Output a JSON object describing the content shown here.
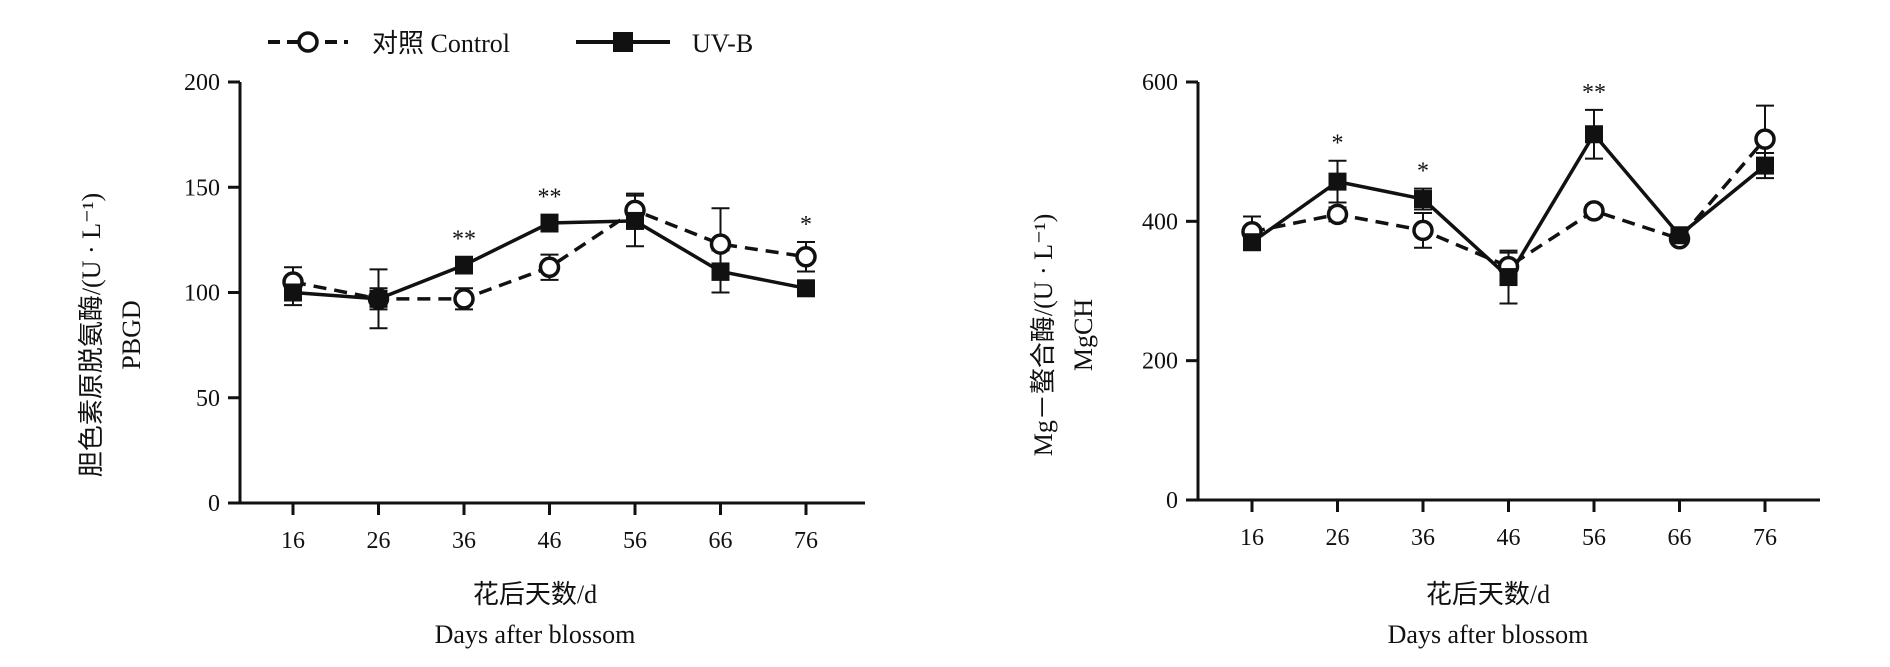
{
  "legend": [
    {
      "label": "对照 Control",
      "style": "dashed",
      "marker": "open-circle"
    },
    {
      "label": "UV-B",
      "style": "solid",
      "marker": "filled-square"
    }
  ],
  "colors": {
    "ink": "#111111",
    "background": "#ffffff"
  },
  "chart_data": [
    {
      "type": "line",
      "x": [
        16,
        26,
        36,
        46,
        56,
        66,
        76
      ],
      "xlabel_lines": [
        "花后天数/d",
        "Days after blossom"
      ],
      "ylabel_lines": [
        "胆色素原脱氨酶/(U · L⁻¹)",
        "PBGD"
      ],
      "ylim": [
        0,
        200
      ],
      "yticks": [
        0,
        50,
        100,
        150,
        200
      ],
      "grid": false,
      "series": [
        {
          "name": "对照 Control",
          "values": [
            105,
            97,
            97,
            112,
            139,
            123,
            117
          ],
          "errors": [
            7,
            14,
            5,
            6,
            8,
            17,
            7
          ]
        },
        {
          "name": "UV-B",
          "values": [
            100,
            97,
            113,
            133,
            134,
            110,
            102
          ],
          "errors": [
            6,
            5,
            4,
            4,
            12,
            10,
            3
          ]
        }
      ],
      "annotations": [
        {
          "x": 36,
          "text": "**"
        },
        {
          "x": 46,
          "text": "**"
        },
        {
          "x": 76,
          "text": "*"
        }
      ]
    },
    {
      "type": "line",
      "x": [
        16,
        26,
        36,
        46,
        56,
        66,
        76
      ],
      "xlabel_lines": [
        "花后天数/d",
        "Days after blossom"
      ],
      "ylabel_lines": [
        "Mg－螯合酶/(U · L⁻¹)",
        "MgCH"
      ],
      "ylim": [
        0,
        600
      ],
      "yticks": [
        0,
        200,
        400,
        600
      ],
      "grid": false,
      "series": [
        {
          "name": "对照 Control",
          "values": [
            385,
            410,
            387,
            335,
            415,
            375,
            518
          ],
          "errors": [
            22,
            10,
            25,
            20,
            8,
            6,
            48
          ]
        },
        {
          "name": "UV-B",
          "values": [
            370,
            457,
            432,
            320,
            525,
            380,
            480
          ],
          "errors": [
            8,
            30,
            15,
            38,
            35,
            8,
            18
          ]
        }
      ],
      "annotations": [
        {
          "x": 26,
          "text": "*"
        },
        {
          "x": 36,
          "text": "*"
        },
        {
          "x": 56,
          "text": "**"
        }
      ]
    }
  ]
}
